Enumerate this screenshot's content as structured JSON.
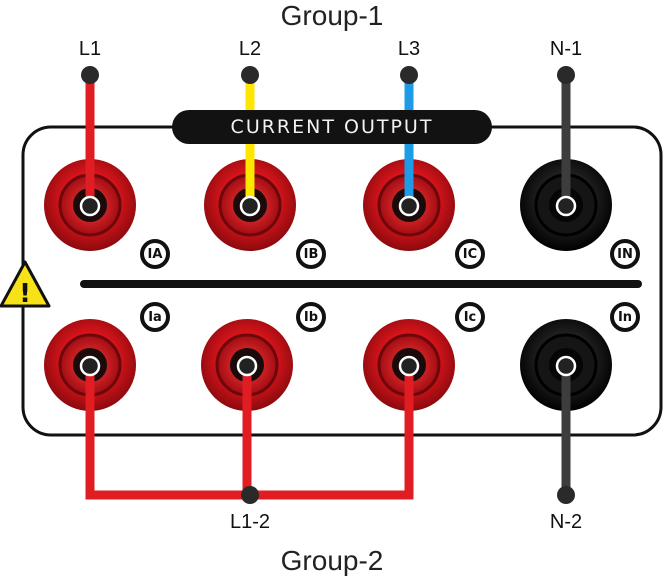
{
  "group1": {
    "title": "Group-1",
    "leads": [
      "L1",
      "L2",
      "L3",
      "N-1"
    ]
  },
  "panel": {
    "title": "CURRENT OUTPUT",
    "top_badges": [
      "IA",
      "IB",
      "IC",
      "IN"
    ],
    "bottom_badges": [
      "Ia",
      "Ib",
      "Ic",
      "In"
    ]
  },
  "group2": {
    "title": "Group-2",
    "leads": [
      "L1-2",
      "N-2"
    ]
  },
  "warning": {
    "symbol": "!"
  },
  "colors": {
    "red_terminal": "#d8141b",
    "black_terminal": "#1c1c1c",
    "wire_red": "#e11d24",
    "wire_yellow": "#ffe600",
    "wire_blue": "#1e9be6",
    "wire_gray": "#3d3d3d",
    "warning_yellow": "#f7e21a"
  },
  "icons": [
    "banana-socket-icon",
    "warning-triangle-icon",
    "wire-end-dot-icon"
  ]
}
